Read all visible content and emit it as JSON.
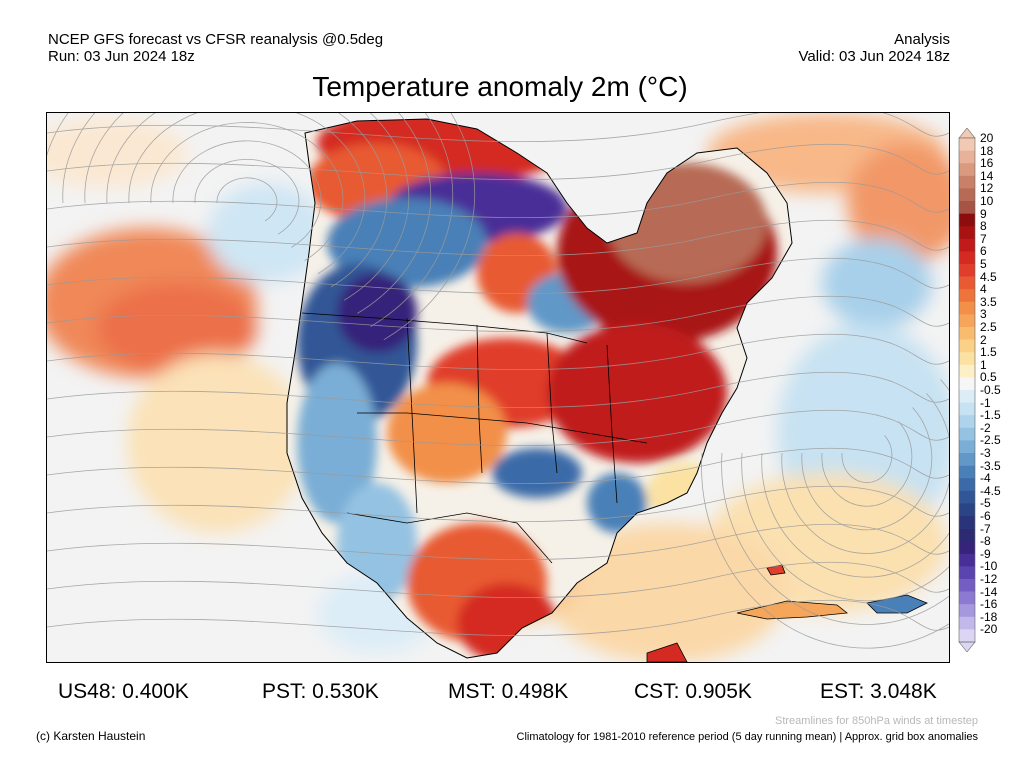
{
  "header": {
    "left_line1": "NCEP GFS forecast vs CFSR reanalysis @0.5deg",
    "left_line2": "Run: 03 Jun 2024 18z",
    "right_line1": "Analysis",
    "right_line2": "Valid: 03 Jun 2024 18z"
  },
  "title": "Temperature anomaly 2m (°C)",
  "colorbar": {
    "labels": [
      "20",
      "18",
      "16",
      "14",
      "12",
      "10",
      "9",
      "8",
      "7",
      "6",
      "5",
      "4.5",
      "4",
      "3.5",
      "3",
      "2.5",
      "2",
      "1.5",
      "1",
      "0.5",
      "-0.5",
      "-1",
      "-1.5",
      "-2",
      "-2.5",
      "-3",
      "-3.5",
      "-4",
      "-4.5",
      "-5",
      "-6",
      "-7",
      "-8",
      "-9",
      "-10",
      "-12",
      "-14",
      "-16",
      "-18",
      "-20"
    ],
    "colors": [
      "#f2c9b2",
      "#e8b29a",
      "#d99a80",
      "#c88068",
      "#b76a55",
      "#a65544",
      "#8c0d0d",
      "#a81212",
      "#c01a1a",
      "#d42a22",
      "#e03e2a",
      "#e85a32",
      "#ee743c",
      "#f2904a",
      "#f5a65a",
      "#f8bc6e",
      "#fad186",
      "#fbe2a2",
      "#fdf0c6",
      "#f6f6f6",
      "#dcedf7",
      "#c7e2f2",
      "#aed3ea",
      "#94c2e2",
      "#7aaed6",
      "#6198c8",
      "#4a80b8",
      "#3b6aa8",
      "#315696",
      "#2a4486",
      "#2a3478",
      "#2c2a70",
      "#36237a",
      "#482f98",
      "#5c44b0",
      "#745ec4",
      "#8c7ad2",
      "#a698de",
      "#c2b8ea",
      "#dcd6f4"
    ]
  },
  "stats": {
    "us48": "US48: 0.400K",
    "pst": "PST: 0.530K",
    "mst": "MST: 0.498K",
    "cst": "CST: 0.905K",
    "est": "EST: 3.048K"
  },
  "footer": {
    "credit": "(c) Karsten Haustein",
    "streamlines_note": "Streamlines for 850hPa winds at timestep",
    "climatology_note": "Climatology for 1981-2010 reference period (5 day running mean) | Approx. grid box anomalies"
  },
  "map": {
    "region": "north-america",
    "palette": {
      "ocean_neutral": "#f3f3f3",
      "land_neutral": "#f6f1e8",
      "coast_line": "#000000",
      "streamline": "#9a9a9a"
    }
  }
}
